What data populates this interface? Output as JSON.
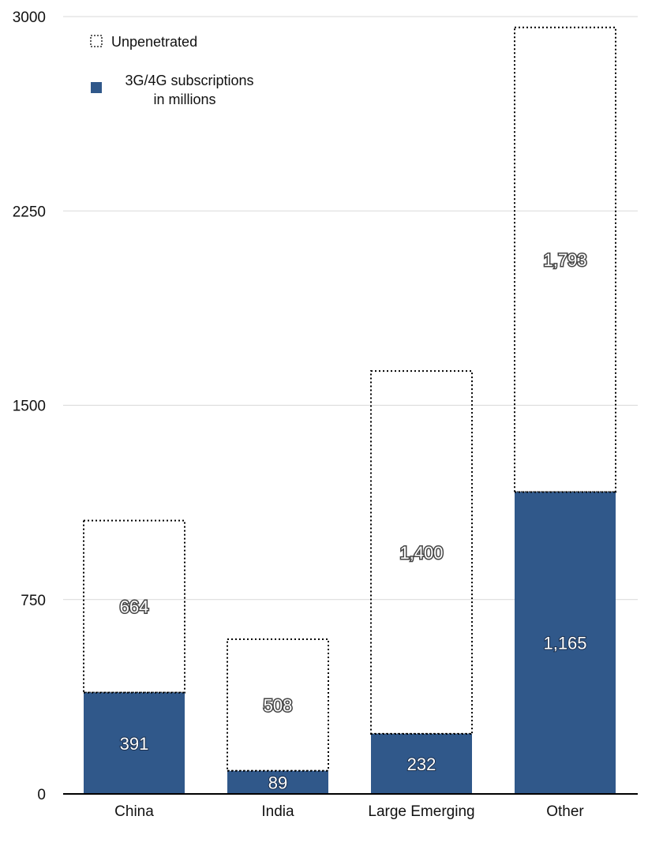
{
  "chart_data": {
    "type": "bar",
    "stacked": true,
    "categories": [
      "China",
      "India",
      "Large Emerging",
      "Other"
    ],
    "series": [
      {
        "name": "3G/4G subscriptions in millions",
        "values": [
          391,
          89,
          232,
          1165
        ],
        "labels": [
          "391",
          "89",
          "232",
          "1,165"
        ],
        "color": "#30588a",
        "style": "filled"
      },
      {
        "name": "Unpenetrated",
        "values": [
          664,
          508,
          1400,
          1793
        ],
        "labels": [
          "664",
          "508",
          "1,400",
          "1,793"
        ],
        "color": "#000000",
        "style": "dotted-outline"
      }
    ],
    "legend_lines": {
      "unpenetrated": "Unpenetrated",
      "subscriptions_line1": "3G/4G subscriptions",
      "subscriptions_line2": "in millions"
    },
    "y_ticks": [
      0,
      750,
      1500,
      2250,
      3000
    ],
    "ylim": [
      0,
      3000
    ],
    "grid": true,
    "legend_position": "top-left",
    "title": "",
    "xlabel": "",
    "ylabel": ""
  }
}
